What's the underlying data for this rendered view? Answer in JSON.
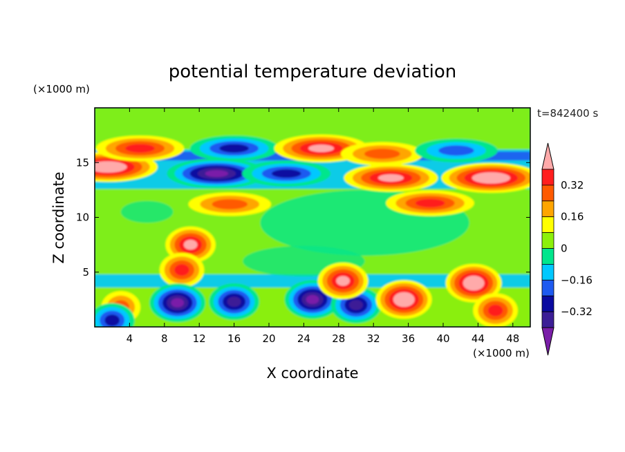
{
  "chart_data": {
    "type": "heatmap",
    "title": "potential temperature deviation",
    "xlabel": "X coordinate",
    "ylabel": "Z coordinate",
    "x_unit": "(×1000 m)",
    "y_unit": "(×1000 m)",
    "time_label": "t=842400 s",
    "xlim": [
      0,
      50
    ],
    "ylim": [
      0,
      20
    ],
    "x_ticks": [
      4,
      8,
      12,
      16,
      20,
      24,
      28,
      32,
      36,
      40,
      44,
      48
    ],
    "x_tick_labels": [
      "4",
      "8",
      "12",
      "16",
      "20",
      "24",
      "28",
      "32",
      "36",
      "40",
      "44",
      "48"
    ],
    "y_ticks": [
      5,
      10,
      15
    ],
    "y_tick_labels": [
      "5",
      "10",
      "15"
    ],
    "colorbar": {
      "levels": [
        -0.48,
        -0.4,
        -0.32,
        -0.24,
        -0.16,
        -0.08,
        0,
        0.08,
        0.16,
        0.24,
        0.32,
        0.4
      ],
      "labeled_levels": [
        0.32,
        0.16,
        0,
        -0.16,
        -0.32
      ],
      "labels": [
        "0.32",
        "0.16",
        "0",
        "−0.16",
        "−0.32"
      ],
      "colors": [
        "#7a1ea8",
        "#3c1e96",
        "#0a0aa0",
        "#1e5af0",
        "#00c8ff",
        "#00e68c",
        "#8cf00a",
        "#ffff00",
        "#ffa500",
        "#ff5a00",
        "#ff1e1e",
        "#ffaaaa"
      ],
      "extend": "both"
    },
    "features": [
      {
        "x": 1.5,
        "z": 14.6,
        "value": 0.45
      },
      {
        "x": 5.2,
        "z": 16.3,
        "value": 0.3
      },
      {
        "x": 16,
        "z": 16.3,
        "value": -0.35
      },
      {
        "x": 26,
        "z": 16.3,
        "value": 0.42
      },
      {
        "x": 33,
        "z": 15.8,
        "value": 0.2
      },
      {
        "x": 41.5,
        "z": 16.1,
        "value": -0.2
      },
      {
        "x": 14,
        "z": 14.0,
        "value": -0.48
      },
      {
        "x": 22,
        "z": 14.0,
        "value": -0.3
      },
      {
        "x": 34,
        "z": 13.6,
        "value": 0.42
      },
      {
        "x": 45.5,
        "z": 13.6,
        "value": 0.45
      },
      {
        "x": 38.5,
        "z": 11.3,
        "value": 0.35
      },
      {
        "x": 15.5,
        "z": 11.2,
        "value": 0.25
      },
      {
        "x": 11.0,
        "z": 7.5,
        "value": 0.4
      },
      {
        "x": 10.0,
        "z": 5.2,
        "value": 0.35
      },
      {
        "x": 9.5,
        "z": 2.2,
        "value": -0.45
      },
      {
        "x": 16.0,
        "z": 2.3,
        "value": -0.4
      },
      {
        "x": 25.0,
        "z": 2.5,
        "value": -0.45
      },
      {
        "x": 30.0,
        "z": 2.0,
        "value": -0.4
      },
      {
        "x": 35.5,
        "z": 2.5,
        "value": 0.45
      },
      {
        "x": 28.5,
        "z": 4.2,
        "value": 0.4
      },
      {
        "x": 43.5,
        "z": 4.0,
        "value": 0.45
      },
      {
        "x": 3.0,
        "z": 1.8,
        "value": 0.25
      },
      {
        "x": 46.0,
        "z": 1.5,
        "value": 0.3
      },
      {
        "x": 2.0,
        "z": 0.6,
        "value": -0.35
      }
    ]
  }
}
